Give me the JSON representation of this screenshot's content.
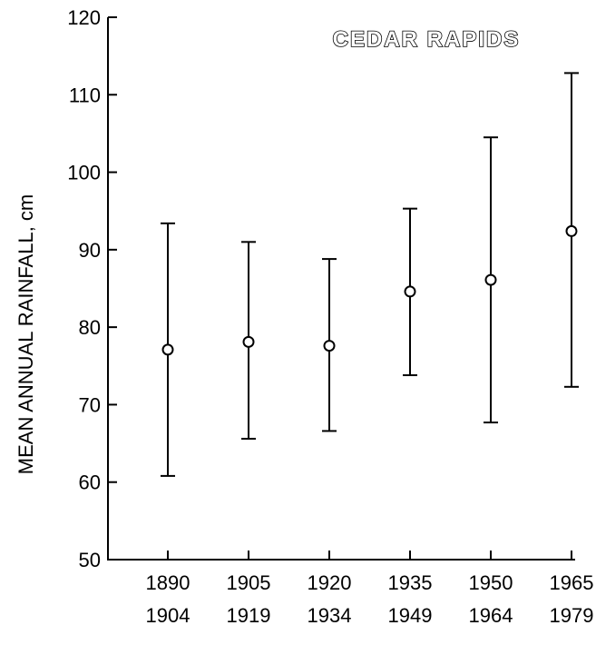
{
  "chart_data": {
    "type": "scatter",
    "title": "CEDAR  RAPIDS",
    "xlabel": "",
    "ylabel": "MEAN ANNUAL RAINFALL, cm",
    "ylim": [
      50,
      120
    ],
    "yticks": [
      "50",
      "60",
      "70",
      "80",
      "90",
      "100",
      "110",
      "120"
    ],
    "categories": [
      {
        "line1": "1890",
        "line2": "1904"
      },
      {
        "line1": "1905",
        "line2": "1919"
      },
      {
        "line1": "1920",
        "line2": "1934"
      },
      {
        "line1": "1935",
        "line2": "1949"
      },
      {
        "line1": "1950",
        "line2": "1964"
      },
      {
        "line1": "1965",
        "line2": "1979"
      }
    ],
    "series": [
      {
        "values": [
          77.1,
          78.1,
          77.6,
          84.6,
          86.1,
          92.4
        ],
        "upper": [
          93.4,
          91.0,
          88.8,
          95.3,
          104.5,
          112.8
        ],
        "lower": [
          60.8,
          65.6,
          66.6,
          73.8,
          67.7,
          72.3
        ]
      }
    ],
    "grid": false,
    "legend": "none"
  }
}
